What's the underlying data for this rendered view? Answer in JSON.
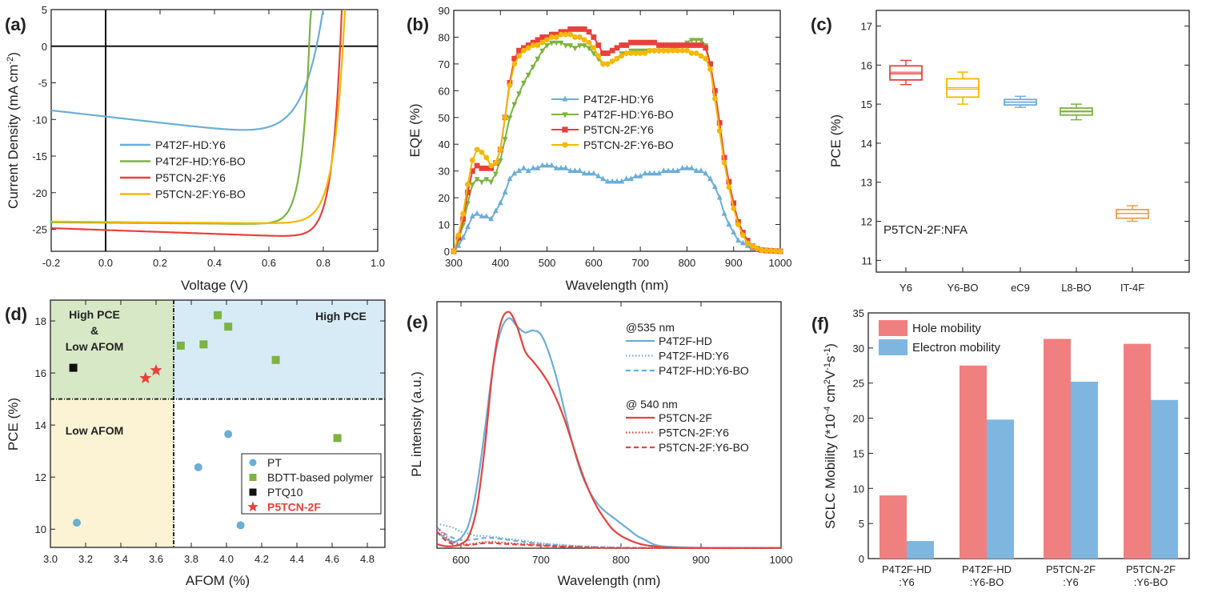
{
  "colors": {
    "P4T2F-HD:Y6": "#6baed6",
    "P4T2F-HD:Y6-BO": "#7cb342",
    "P5TCN-2F:Y6": "#e8413c",
    "P5TCN-2F:Y6-BO": "#f5b800",
    "PT": "#6baed6",
    "BDTT": "#7cb342",
    "PTQ10": "#111111",
    "P5TCN": "#e8413c",
    "hole": "#f08080",
    "electron": "#7eb6e0",
    "boxY6": "#e8413c",
    "boxY6BO": "#f5b800",
    "boxeC9": "#6baed6",
    "boxL8BO": "#7cb342",
    "boxIT4F": "#f39a4a"
  },
  "chart_data": [
    {
      "id": "a",
      "panel_label": "(a)",
      "type": "line",
      "xlabel": "Voltage (V)",
      "ylabel_parts": [
        "Current Density (mA cm",
        "-2",
        ")"
      ],
      "xlim": [
        -0.2,
        1.0
      ],
      "ylim": [
        -28,
        5
      ],
      "xticks": [
        -0.2,
        0.0,
        0.2,
        0.4,
        0.6,
        0.8,
        1.0
      ],
      "xtick_labels": [
        "-0.2",
        "0.0",
        "0.2",
        "0.4",
        "0.6",
        "0.8",
        "1.0"
      ],
      "yticks": [
        5,
        0,
        -5,
        -10,
        -15,
        -20,
        -25
      ],
      "ytick_labels": [
        "5",
        "0",
        "-5",
        "-10",
        "-15",
        "-20",
        "-25"
      ],
      "legend": [
        "P4T2F-HD:Y6",
        "P4T2F-HD:Y6-BO",
        "P5TCN-2F:Y6",
        "P5TCN-2F:Y6-BO"
      ],
      "series": [
        {
          "name": "P4T2F-HD:Y6",
          "jsc": -9.6,
          "voc": 0.775,
          "slope": -4.2,
          "curv": 14
        },
        {
          "name": "P4T2F-HD:Y6-BO",
          "jsc": -24.1,
          "voc": 0.748,
          "slope": -0.3,
          "curv": 34
        },
        {
          "name": "P5TCN-2F:Y6",
          "jsc": -25.1,
          "voc": 0.862,
          "slope": -1.3,
          "curv": 30
        },
        {
          "name": "P5TCN-2F:Y6-BO",
          "jsc": -24.0,
          "voc": 0.872,
          "slope": -0.3,
          "curv": 26
        }
      ]
    },
    {
      "id": "b",
      "panel_label": "(b)",
      "type": "line",
      "xlabel": "Wavelength (nm)",
      "ylabel": "EQE (%)",
      "xlim": [
        300,
        1000
      ],
      "ylim": [
        0,
        90
      ],
      "xticks": [
        300,
        400,
        500,
        600,
        700,
        800,
        900,
        1000
      ],
      "yticks": [
        0,
        10,
        20,
        30,
        40,
        50,
        60,
        70,
        80,
        90
      ],
      "legend": [
        "P4T2F-HD:Y6",
        "P4T2F-HD:Y6-BO",
        "P5TCN-2F:Y6",
        "P5TCN-2F:Y6-BO"
      ],
      "x": [
        300,
        310,
        320,
        330,
        340,
        350,
        360,
        370,
        380,
        390,
        400,
        410,
        420,
        430,
        440,
        450,
        460,
        470,
        480,
        490,
        500,
        510,
        520,
        530,
        540,
        550,
        560,
        570,
        580,
        590,
        600,
        610,
        620,
        630,
        640,
        650,
        660,
        670,
        680,
        690,
        700,
        710,
        720,
        730,
        740,
        750,
        760,
        770,
        780,
        790,
        800,
        810,
        820,
        830,
        840,
        850,
        860,
        870,
        880,
        890,
        900,
        910,
        920,
        930,
        940,
        950,
        960,
        970,
        980,
        990,
        1000
      ],
      "series": [
        {
          "name": "P4T2F-HD:Y6",
          "values": [
            0,
            2,
            5,
            9,
            13,
            14,
            13,
            13,
            12,
            15,
            18,
            22,
            27,
            29,
            30,
            31,
            30,
            31,
            31,
            32,
            32,
            32,
            31,
            31,
            31,
            30,
            30,
            30,
            29,
            29,
            29,
            28,
            27,
            26,
            26,
            26,
            26,
            27,
            27,
            28,
            28,
            29,
            29,
            29,
            29,
            30,
            30,
            30,
            30,
            31,
            31,
            31,
            30,
            30,
            29,
            27,
            24,
            20,
            14,
            10,
            7,
            4,
            3,
            2,
            1,
            1,
            0.5,
            0.3,
            0.2,
            0.1,
            0
          ]
        },
        {
          "name": "P4T2F-HD:Y6-BO",
          "values": [
            0,
            4,
            10,
            18,
            25,
            27,
            26,
            27,
            26,
            29,
            34,
            42,
            50,
            55,
            59,
            63,
            66,
            69,
            72,
            75,
            77,
            78,
            78,
            78,
            77,
            77,
            76,
            77,
            77,
            76,
            74,
            72,
            70,
            70,
            71,
            72,
            74,
            74,
            75,
            75,
            75,
            75,
            75,
            75,
            75,
            75,
            75,
            76,
            76,
            77,
            78,
            79,
            79,
            79,
            77,
            70,
            58,
            45,
            33,
            25,
            17,
            11,
            7,
            4,
            2,
            1,
            0.5,
            0.3,
            0.2,
            0.1,
            0
          ]
        },
        {
          "name": "P5TCN-2F:Y6",
          "values": [
            0,
            5,
            12,
            22,
            30,
            32,
            31,
            31,
            31,
            33,
            38,
            50,
            63,
            72,
            75,
            76,
            77,
            78,
            79,
            80,
            80,
            81,
            81,
            82,
            82,
            83,
            83,
            83,
            83,
            82,
            80,
            77,
            74,
            74,
            75,
            76,
            77,
            77,
            78,
            78,
            78,
            78,
            78,
            78,
            77,
            77,
            77,
            77,
            77,
            77,
            77,
            77,
            77,
            77,
            76,
            70,
            60,
            48,
            35,
            26,
            18,
            11,
            7,
            4,
            2,
            1,
            0.5,
            0.3,
            0.2,
            0.1,
            0
          ]
        },
        {
          "name": "P5TCN-2F:Y6-BO",
          "values": [
            0,
            6,
            14,
            25,
            34,
            38,
            37,
            35,
            32,
            33,
            38,
            50,
            62,
            70,
            73,
            75,
            76,
            77,
            77,
            78,
            79,
            80,
            80,
            81,
            81,
            81,
            80,
            80,
            79,
            78,
            76,
            73,
            70,
            70,
            71,
            72,
            73,
            74,
            74,
            74,
            74,
            74,
            75,
            75,
            75,
            75,
            75,
            75,
            75,
            75,
            75,
            74,
            74,
            73,
            72,
            68,
            57,
            45,
            33,
            24,
            16,
            10,
            6,
            3,
            2,
            1,
            0.5,
            0.3,
            0.2,
            0.1,
            0
          ]
        }
      ]
    },
    {
      "id": "c",
      "panel_label": "(c)",
      "type": "box",
      "ylabel": "PCE (%)",
      "ylim": [
        10.7,
        17.4
      ],
      "yticks": [
        11,
        12,
        13,
        14,
        15,
        16,
        17
      ],
      "annotation": "P5TCN-2F:NFA",
      "categories": [
        "Y6",
        "Y6-BO",
        "eC9",
        "L8-BO",
        "IT-4F"
      ],
      "boxes": [
        {
          "min": 15.5,
          "q1": 15.62,
          "median": 15.78,
          "mean": 15.82,
          "q3": 15.98,
          "max": 16.12
        },
        {
          "min": 15.0,
          "q1": 15.18,
          "median": 15.42,
          "mean": 15.38,
          "q3": 15.65,
          "max": 15.82
        },
        {
          "min": 14.92,
          "q1": 14.98,
          "median": 15.05,
          "mean": 15.06,
          "q3": 15.12,
          "max": 15.2
        },
        {
          "min": 14.6,
          "q1": 14.72,
          "median": 14.82,
          "mean": 14.8,
          "q3": 14.9,
          "max": 15.0
        },
        {
          "min": 12.0,
          "q1": 12.08,
          "median": 12.2,
          "mean": 12.2,
          "q3": 12.3,
          "max": 12.4
        }
      ]
    },
    {
      "id": "d",
      "panel_label": "(d)",
      "type": "scatter",
      "xlabel": "AFOM (%)",
      "ylabel": "PCE (%)",
      "xlim": [
        3.0,
        4.9
      ],
      "ylim": [
        9.3,
        18.8
      ],
      "xticks": [
        3.0,
        3.2,
        3.4,
        3.6,
        3.8,
        4.0,
        4.2,
        4.4,
        4.6,
        4.8
      ],
      "xtick_labels": [
        "3.0",
        "3.2",
        "3.4",
        "3.6",
        "3.8",
        "4.0",
        "4.2",
        "4.4",
        "4.6",
        "4.8"
      ],
      "yticks": [
        10,
        12,
        14,
        16,
        18
      ],
      "x_divider": 3.7,
      "y_divider": 15.0,
      "zones": {
        "top_left": [
          "High PCE",
          "&",
          "Low AFOM"
        ],
        "top_right": "High PCE",
        "bottom_left": "Low AFOM"
      },
      "legend": [
        "PT",
        "BDTT-based polymer",
        "PTQ10",
        "P5TCN-2F"
      ],
      "series": [
        {
          "name": "PT",
          "marker": "circle",
          "points": [
            [
              3.15,
              10.25
            ],
            [
              3.84,
              12.38
            ],
            [
              4.01,
              13.65
            ],
            [
              4.08,
              10.15
            ]
          ]
        },
        {
          "name": "BDTT-based polymer",
          "marker": "square",
          "points": [
            [
              3.74,
              17.05
            ],
            [
              3.87,
              17.1
            ],
            [
              3.95,
              18.22
            ],
            [
              4.01,
              17.78
            ],
            [
              4.28,
              16.5
            ],
            [
              4.63,
              13.5
            ]
          ]
        },
        {
          "name": "PTQ10",
          "marker": "square",
          "points": [
            [
              3.13,
              16.2
            ]
          ]
        },
        {
          "name": "P5TCN-2F",
          "marker": "star",
          "points": [
            [
              3.54,
              15.8
            ],
            [
              3.6,
              16.1
            ]
          ]
        }
      ]
    },
    {
      "id": "e",
      "panel_label": "(e)",
      "type": "line",
      "xlabel": "Wavelength (nm)",
      "ylabel": "PL intensity (a.u.)",
      "xlim": [
        570,
        1000
      ],
      "ylim": [
        0,
        1.2
      ],
      "xticks": [
        600,
        700,
        800,
        900,
        1000
      ],
      "legend_groups": [
        {
          "header": "@535 nm",
          "entries": [
            "P4T2F-HD",
            "P4T2F-HD:Y6",
            "P4T2F-HD:Y6-BO"
          ]
        },
        {
          "header": "@ 540 nm",
          "entries": [
            "P5TCN-2F",
            "P5TCN-2F:Y6",
            "P5TCN-2F:Y6-BO"
          ]
        }
      ],
      "x": [
        570,
        580,
        590,
        600,
        610,
        620,
        630,
        640,
        650,
        660,
        670,
        680,
        690,
        700,
        710,
        720,
        730,
        740,
        750,
        760,
        770,
        780,
        790,
        800,
        810,
        820,
        830,
        840,
        850,
        870,
        900,
        950,
        1000
      ],
      "series": [
        {
          "name": "P4T2F-HD",
          "style": "solid",
          "values": [
            0.08,
            0.05,
            0.03,
            0.05,
            0.12,
            0.3,
            0.58,
            0.88,
            1.06,
            1.12,
            1.08,
            1.05,
            1.06,
            1.04,
            0.95,
            0.82,
            0.66,
            0.5,
            0.37,
            0.28,
            0.22,
            0.18,
            0.15,
            0.12,
            0.09,
            0.06,
            0.04,
            0.02,
            0.01,
            0.005,
            0.002,
            0.001,
            0.001
          ]
        },
        {
          "name": "P4T2F-HD:Y6",
          "style": "dot",
          "values": [
            0.12,
            0.11,
            0.1,
            0.08,
            0.07,
            0.06,
            0.06,
            0.055,
            0.05,
            0.045,
            0.04,
            0.035,
            0.03,
            0.025,
            0.02,
            0.018,
            0.015,
            0.012,
            0.01,
            0.008,
            0.006,
            0.005,
            0.004,
            0.003,
            0.002,
            0.002,
            0.001,
            0.001,
            0.001,
            0.001,
            0.001,
            0.001,
            0.001
          ]
        },
        {
          "name": "P4T2F-HD:Y6-BO",
          "style": "dash",
          "values": [
            0.1,
            0.07,
            0.05,
            0.04,
            0.04,
            0.045,
            0.05,
            0.05,
            0.045,
            0.04,
            0.035,
            0.03,
            0.025,
            0.02,
            0.018,
            0.015,
            0.012,
            0.01,
            0.008,
            0.006,
            0.005,
            0.004,
            0.003,
            0.002,
            0.002,
            0.001,
            0.001,
            0.001,
            0.001,
            0.001,
            0.001,
            0.001,
            0.001
          ]
        },
        {
          "name": "P5TCN-2F",
          "style": "solid",
          "values": [
            0.02,
            0.01,
            0.01,
            0.02,
            0.06,
            0.2,
            0.5,
            0.88,
            1.1,
            1.15,
            1.08,
            0.96,
            0.91,
            0.86,
            0.8,
            0.72,
            0.62,
            0.5,
            0.38,
            0.28,
            0.2,
            0.14,
            0.09,
            0.06,
            0.04,
            0.025,
            0.015,
            0.01,
            0.005,
            0.002,
            0.001,
            0.001,
            0.001
          ]
        },
        {
          "name": "P5TCN-2F:Y6",
          "style": "dot",
          "values": [
            0.1,
            0.06,
            0.03,
            0.02,
            0.02,
            0.025,
            0.03,
            0.03,
            0.028,
            0.025,
            0.022,
            0.02,
            0.018,
            0.015,
            0.012,
            0.01,
            0.008,
            0.006,
            0.005,
            0.004,
            0.003,
            0.002,
            0.002,
            0.001,
            0.001,
            0.001,
            0.001,
            0.001,
            0.001,
            0.001,
            0.001,
            0.001,
            0.001
          ]
        },
        {
          "name": "P5TCN-2F:Y6-BO",
          "style": "dash",
          "values": [
            0.08,
            0.04,
            0.02,
            0.015,
            0.015,
            0.02,
            0.025,
            0.025,
            0.022,
            0.02,
            0.018,
            0.016,
            0.014,
            0.012,
            0.01,
            0.008,
            0.006,
            0.005,
            0.004,
            0.003,
            0.002,
            0.002,
            0.001,
            0.001,
            0.001,
            0.001,
            0.001,
            0.001,
            0.001,
            0.001,
            0.001,
            0.001,
            0.001
          ]
        }
      ]
    },
    {
      "id": "f",
      "panel_label": "(f)",
      "type": "bar",
      "ylabel_parts": [
        "SCLC Mobility (*10",
        "-4",
        " cm",
        "2",
        "V",
        "-1",
        "s",
        "-1",
        ")"
      ],
      "ylim": [
        0,
        35
      ],
      "yticks": [
        0,
        5,
        10,
        15,
        20,
        25,
        30,
        35
      ],
      "categories": [
        [
          "P4T2F-HD",
          ":Y6"
        ],
        [
          "P4T2F-HD",
          ":Y6-BO"
        ],
        [
          "P5TCN-2F",
          ":Y6"
        ],
        [
          "P5TCN-2F",
          ":Y6-BO"
        ]
      ],
      "legend": [
        "Hole mobility",
        "Electron mobility"
      ],
      "series": [
        {
          "name": "Hole mobility",
          "values": [
            9.0,
            27.5,
            31.3,
            30.6
          ]
        },
        {
          "name": "Electron mobility",
          "values": [
            2.5,
            19.8,
            25.2,
            22.6
          ]
        }
      ]
    }
  ]
}
